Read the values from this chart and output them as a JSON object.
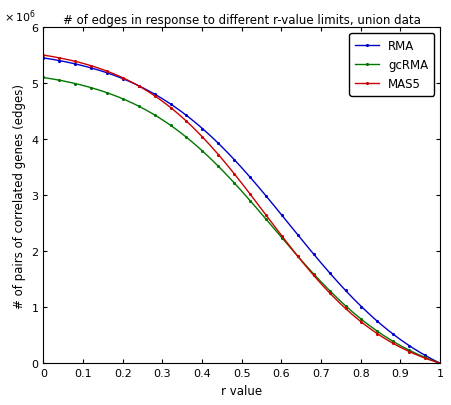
{
  "title": "# of edges in response to different r-value limits, union data",
  "xlabel": "r value",
  "ylabel": "# of pairs of correlated genes (edges)",
  "xlim": [
    0,
    1.0
  ],
  "ylim": [
    0,
    6000000
  ],
  "lines": [
    {
      "label": "RMA",
      "color": "#0000cc",
      "y0": 5450000,
      "k": 5.5,
      "x0": 0.62
    },
    {
      "label": "gcRMA",
      "color": "#007700",
      "y0": 5100000,
      "k": 5.8,
      "x0": 0.58
    },
    {
      "label": "MAS5",
      "color": "#cc0000",
      "y0": 5500000,
      "k": 6.2,
      "x0": 0.56
    }
  ],
  "background_color": "#ffffff",
  "marker_interval": 20,
  "title_fontsize": 8.5,
  "axis_fontsize": 8.5,
  "tick_fontsize": 8
}
